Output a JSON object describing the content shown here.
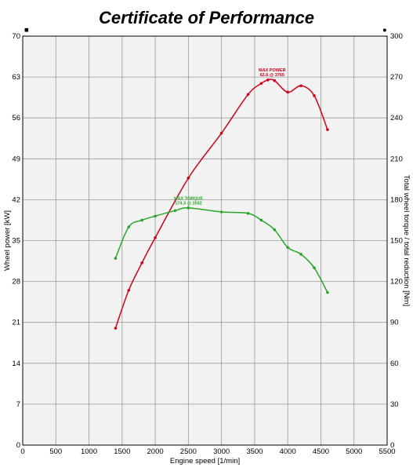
{
  "chart_data": {
    "type": "line",
    "title": "Certificate of Performance",
    "xlabel": "Engine speed [1/min]",
    "ylabel_left": "Wheel power [kW]",
    "ylabel_right": "Total wheel torque / total reduction [Nm]",
    "xlim": [
      0,
      5500
    ],
    "ylim_left": [
      0,
      70
    ],
    "ylim_right": [
      0,
      300
    ],
    "x_ticks": [
      0,
      500,
      1000,
      1500,
      2000,
      2500,
      3000,
      3500,
      4000,
      4500,
      5000,
      5500
    ],
    "y_ticks_left": [
      0,
      7,
      14,
      21,
      28,
      35,
      42,
      49,
      56,
      63,
      70
    ],
    "y_ticks_right": [
      0,
      30,
      60,
      90,
      120,
      150,
      180,
      210,
      240,
      270,
      300
    ],
    "grid": true,
    "legend_markers": {
      "left": "■",
      "right": "●"
    },
    "series": [
      {
        "axis": "left",
        "color": "#d0021b",
        "x": [
          1400,
          1600,
          1800,
          2000,
          2500,
          3000,
          3400,
          3600,
          3700,
          3800,
          4000,
          4200,
          4400,
          4600
        ],
        "values": [
          20.0,
          26.5,
          31.2,
          35.5,
          45.7,
          53.4,
          60.0,
          61.9,
          62.5,
          62.4,
          60.4,
          61.5,
          59.8,
          54.0
        ],
        "annotation": {
          "label": "MAX POWER",
          "value": "62.6 @ 3765",
          "x": 3765,
          "y": 62.6
        }
      },
      {
        "axis": "right",
        "color": "#2aa52a",
        "x": [
          1400,
          1600,
          1800,
          2000,
          2300,
          2500,
          3000,
          3400,
          3600,
          3800,
          4000,
          4200,
          4400,
          4600
        ],
        "values": [
          137,
          160,
          165,
          168,
          172,
          174,
          171,
          170,
          165,
          158,
          145,
          140,
          130,
          112
        ],
        "annotation": {
          "label": "MAX TORQUE",
          "value": "174.3 @ 2502",
          "x": 2502,
          "y": 174.3
        }
      }
    ]
  }
}
